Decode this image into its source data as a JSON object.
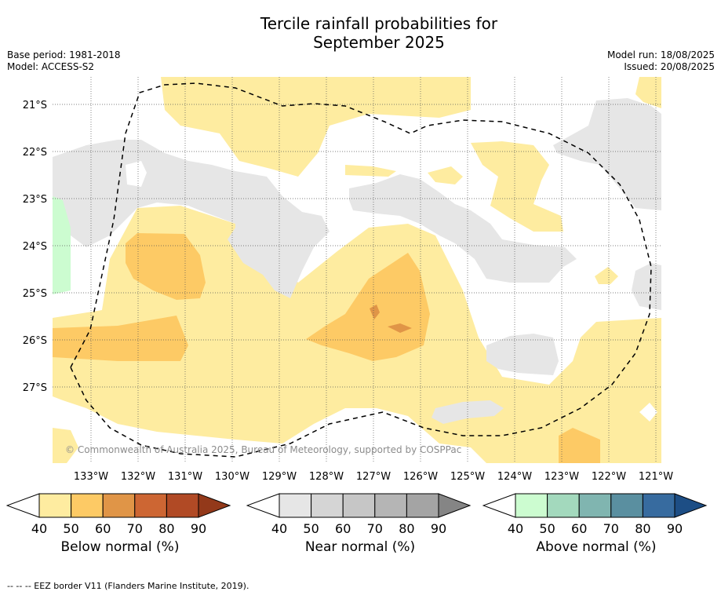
{
  "title_line1": "Tercile rainfall probabilities for",
  "title_line2": "September 2025",
  "base_period": "Base period: 1981-2018",
  "model": "Model: ACCESS-S2",
  "model_run": "Model run: 18/08/2025",
  "issued": "Issued: 20/08/2025",
  "copyright": "© Commonwealth of Australia 2025, Bureau of Meteorology, supported by COSPPac",
  "lat_labels": [
    "21°S",
    "22°S",
    "23°S",
    "24°S",
    "25°S",
    "26°S",
    "27°S"
  ],
  "lon_labels": [
    "133°W",
    "132°W",
    "131°W",
    "130°W",
    "129°W",
    "128°W",
    "127°W",
    "126°W",
    "125°W",
    "124°W",
    "123°W",
    "122°W",
    "121°W"
  ],
  "colorbars": [
    {
      "title": "Below normal (%)",
      "ticks": [
        "40",
        "50",
        "60",
        "70",
        "80",
        "90"
      ],
      "colors": [
        "#ffffff",
        "#feeca0",
        "#fdca65",
        "#e09547",
        "#cd6633",
        "#b14a25",
        "#93391a"
      ]
    },
    {
      "title": "Near normal (%)",
      "ticks": [
        "40",
        "50",
        "60",
        "70",
        "80",
        "90"
      ],
      "colors": [
        "#ffffff",
        "#e6e6e6",
        "#d5d5d5",
        "#c6c6c6",
        "#b5b5b5",
        "#a4a4a4",
        "#858585"
      ]
    },
    {
      "title": "Above normal (%)",
      "ticks": [
        "40",
        "50",
        "60",
        "70",
        "80",
        "90"
      ],
      "colors": [
        "#ffffff",
        "#ccfcd0",
        "#a3d9bd",
        "#80b5b0",
        "#5a8fa0",
        "#376b9f",
        "#1d4e85"
      ]
    }
  ],
  "footnote": "--  --  -- EEZ border V11 (Flanders Marine Institute, 2019)."
}
